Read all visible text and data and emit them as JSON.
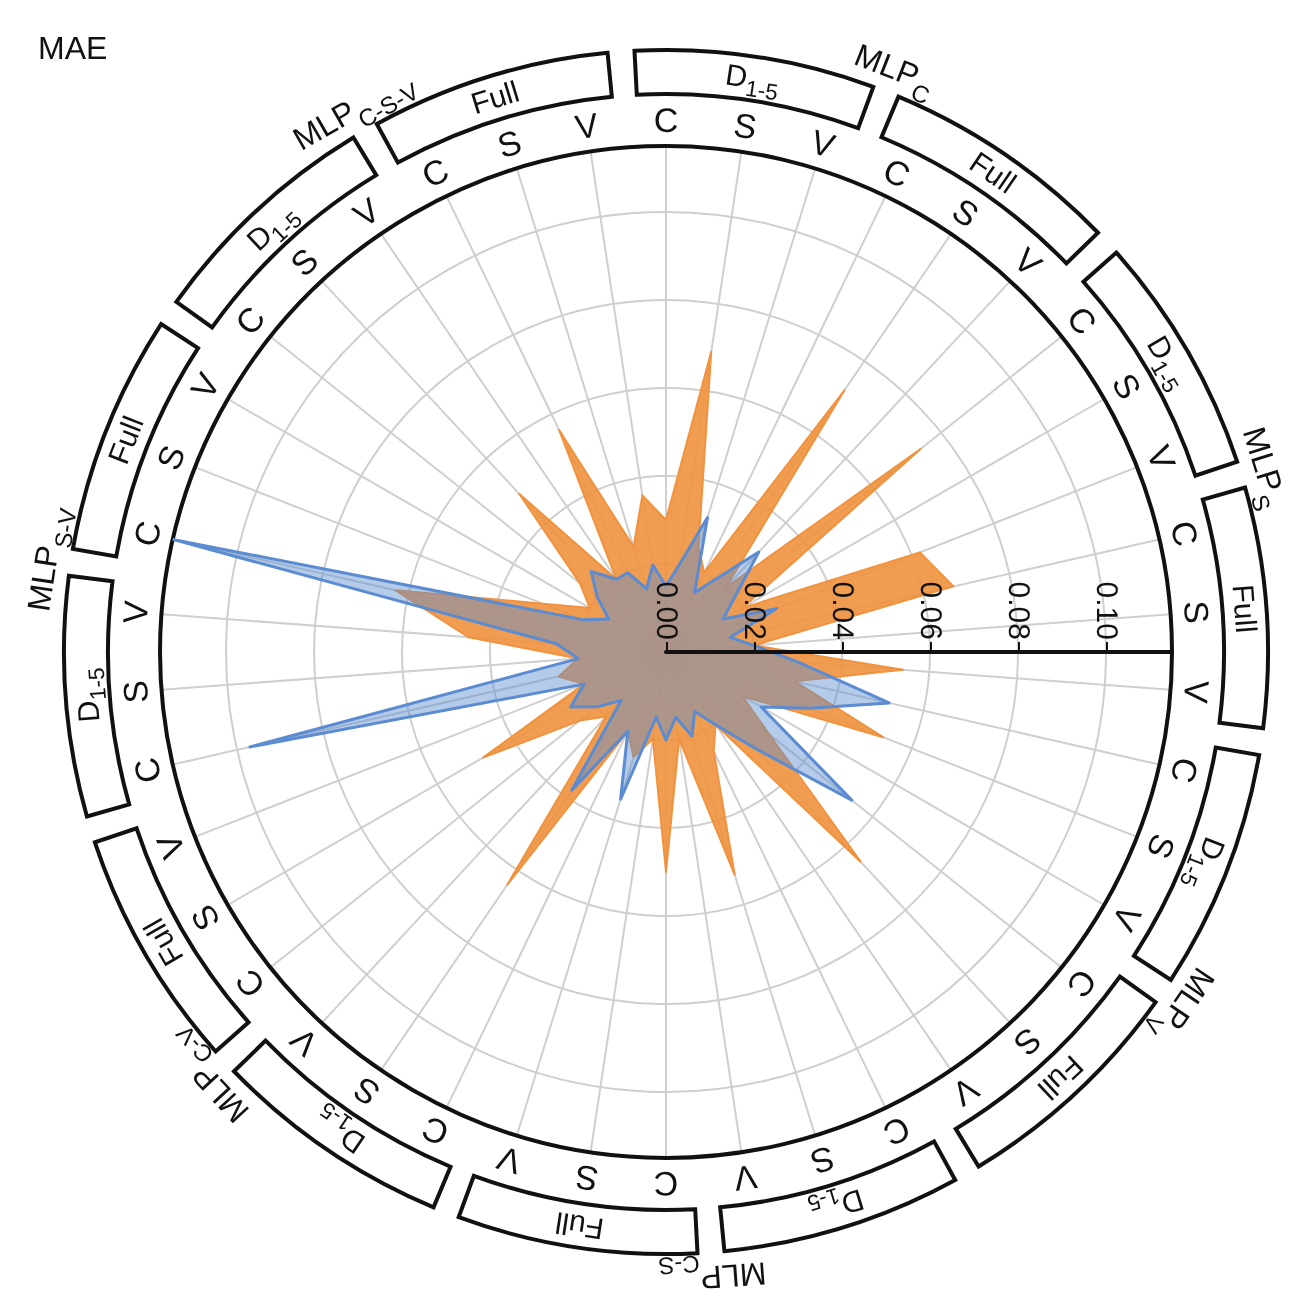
{
  "chart_data": {
    "type": "radar",
    "title": "MAE",
    "categories": [
      "C",
      "S",
      "V",
      "C",
      "S",
      "V",
      "C",
      "S",
      "V",
      "C",
      "S",
      "V",
      "C",
      "S",
      "V",
      "C",
      "S",
      "V",
      "C",
      "S",
      "V",
      "C",
      "S",
      "V",
      "C",
      "S",
      "V",
      "C",
      "S",
      "V",
      "C",
      "S",
      "V",
      "C",
      "S",
      "V",
      "C",
      "S",
      "V",
      "C",
      "S",
      "V"
    ],
    "series": [
      {
        "color": "#f0923e",
        "values": [
          0.03,
          0.069,
          0.025,
          0.02,
          0.072,
          0.02,
          0.074,
          0.02,
          0.062,
          0.067,
          0.02,
          0.054,
          0.03,
          0.053,
          0.02,
          0.03,
          0.065,
          0.02,
          0.025,
          0.053,
          0.02,
          0.05,
          0.02,
          0.025,
          0.02,
          0.064,
          0.02,
          0.025,
          0.048,
          0.02,
          0.025,
          0.02,
          0.045,
          0.063,
          0.03,
          0.02,
          0.025,
          0.049,
          0.02,
          0.056,
          0.025,
          0.036
        ]
      },
      {
        "color": "#5b8bd0",
        "values": [
          0.015,
          0.02,
          0.032,
          0.015,
          0.02,
          0.031,
          0.02,
          0.015,
          0.027,
          0.015,
          0.02,
          0.03,
          0.052,
          0.035,
          0.025,
          0.054,
          0.03,
          0.02,
          0.015,
          0.02,
          0.015,
          0.02,
          0.015,
          0.035,
          0.02,
          0.038,
          0.015,
          0.02,
          0.025,
          0.02,
          0.097,
          0.02,
          0.025,
          0.115,
          0.02,
          0.015,
          0.02,
          0.025,
          0.02,
          0.02,
          0.015,
          0.02
        ]
      }
    ],
    "ylim": [
      0,
      0.115
    ],
    "yticks": [
      {
        "value": 0,
        "label": "0.00"
      },
      {
        "value": 0.02,
        "label": "0.02"
      },
      {
        "value": 0.04,
        "label": "0.04"
      },
      {
        "value": 0.06,
        "label": "0.06"
      },
      {
        "value": 0.08,
        "label": "0.08"
      },
      {
        "value": 0.1,
        "label": "0.10"
      }
    ],
    "grid": true,
    "annotations": [
      "D$_{1-5}$",
      "Full",
      "MLP$_{C}$",
      "D$_{1-5}$",
      "Full",
      "MLP$_{S}$",
      "D$_{1-5}$",
      "Full",
      "MLP$_{V}$",
      "D$_{1-5}$",
      "Full",
      "MLP$_{C-S}$",
      "D$_{1-5}$",
      "Full",
      "MLP$_{C-V}$",
      "D$_{1-5}$",
      "Full",
      "MLP$_{S-V}$",
      "D$_{1-5}$",
      "Full",
      "MLP$_{C-S-V}$"
    ]
  }
}
